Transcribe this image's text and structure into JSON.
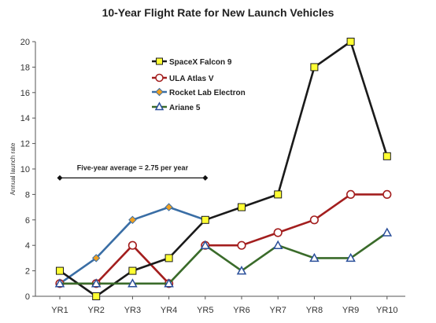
{
  "chart_data": {
    "type": "line",
    "title": "10-Year Flight Rate for New Launch Vehicles",
    "xlabel": "",
    "ylabel": "Annual launch rate",
    "categories": [
      "YR1",
      "YR2",
      "YR3",
      "YR4",
      "YR5",
      "YR6",
      "YR7",
      "YR8",
      "YR9",
      "YR10"
    ],
    "ylim": [
      0,
      20
    ],
    "yticks": [
      0,
      2,
      4,
      6,
      8,
      10,
      12,
      14,
      16,
      18,
      20
    ],
    "grid": false,
    "legend_position": "top-center",
    "series": [
      {
        "name": "SpaceX Falcon 9",
        "color": "#1a1a1a",
        "marker": "square",
        "marker_fill": "#ffff33",
        "values": [
          2,
          0,
          2,
          3,
          6,
          7,
          8,
          18,
          20,
          11
        ]
      },
      {
        "name": "ULA Atlas V",
        "color": "#a31e1e",
        "marker": "circle",
        "marker_fill": "#ffffff",
        "values": [
          1,
          1,
          4,
          1,
          null,
          null,
          null,
          null,
          null,
          null
        ]
      },
      {
        "name": "ULA Atlas V",
        "color": "#a31e1e",
        "marker": "circle",
        "marker_fill": "#ffffff",
        "values": [
          null,
          null,
          null,
          null,
          4,
          4,
          5,
          6,
          8,
          8
        ]
      },
      {
        "name": "Rocket Lab Electron",
        "color": "#3a6ea5",
        "marker": "diamond",
        "marker_fill": "#f0a020",
        "values": [
          1,
          3,
          6,
          7,
          6,
          null,
          null,
          null,
          null,
          null
        ]
      },
      {
        "name": "Ariane 5",
        "color": "#3a6b2a",
        "marker": "triangle",
        "marker_fill": "#ffffff",
        "values": [
          1,
          1,
          1,
          1,
          4,
          2,
          4,
          3,
          3,
          5
        ]
      }
    ],
    "annotations": [
      {
        "text": "Five-year average = 2.75 per year",
        "x_start": "YR1",
        "x_end": "YR5",
        "y": 9.3
      }
    ]
  }
}
